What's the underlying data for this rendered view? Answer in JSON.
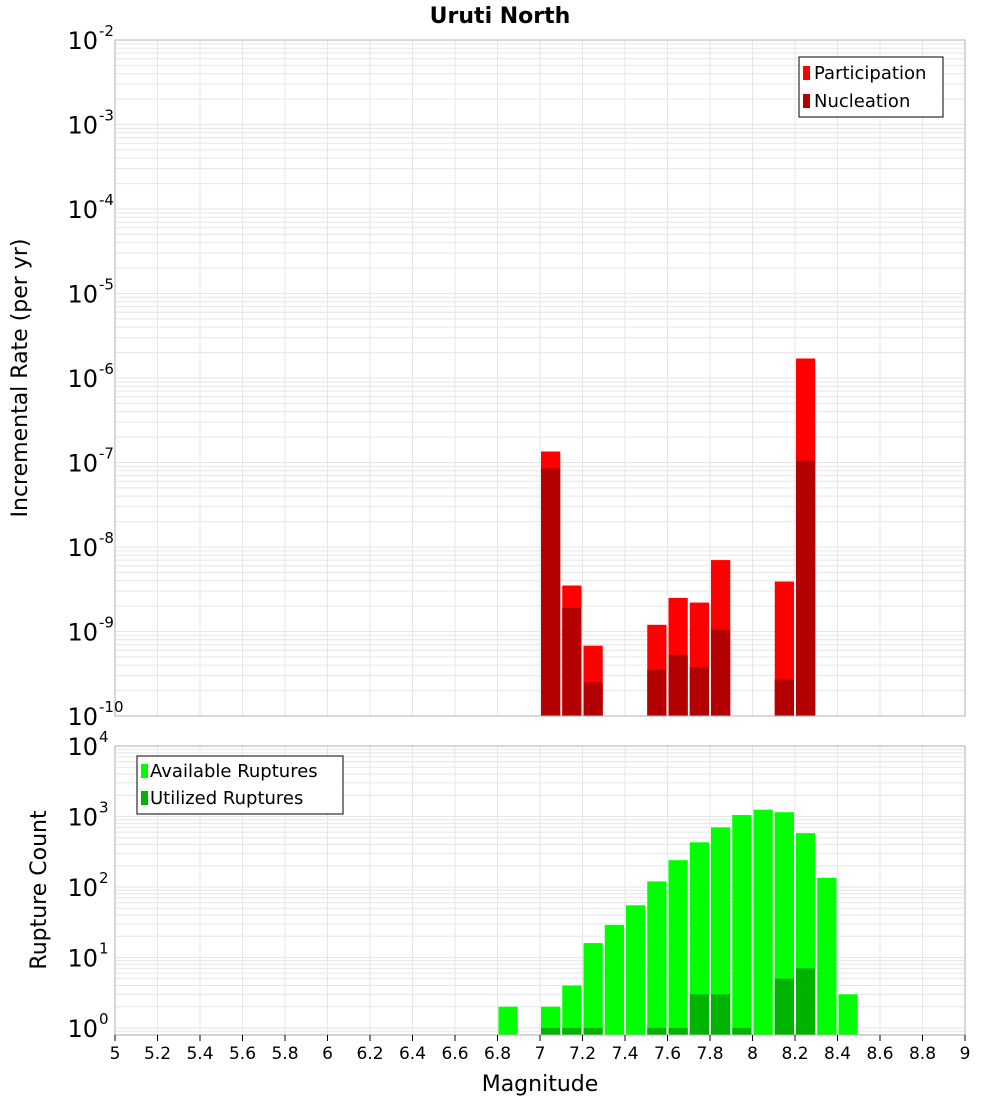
{
  "title": "Uruti North",
  "xlabel": "Magnitude",
  "colors": {
    "participation": "#ff0000",
    "nucleation": "#b30000",
    "available": "#00ff00",
    "utilized": "#00b300",
    "grid": "#e6e6e6",
    "frame": "#b0b0b0"
  },
  "chart_data": [
    {
      "type": "bar",
      "scale": "log",
      "ylabel": "Incremental Rate (per yr)",
      "xlim": [
        5,
        9
      ],
      "ylim_exp": [
        -10,
        -2
      ],
      "ytick_labels": [
        "10",
        "10",
        "10",
        "10",
        "10",
        "10",
        "10",
        "10",
        "10"
      ],
      "ytick_exps": [
        "-10",
        "-9",
        "-8",
        "-7",
        "-6",
        "-5",
        "-4",
        "-3",
        "-2"
      ],
      "legend_position": "top-right",
      "series": [
        {
          "name": "Participation",
          "x": [
            7.05,
            7.15,
            7.25,
            7.55,
            7.65,
            7.75,
            7.85,
            8.15,
            8.25
          ],
          "values": [
            1.35e-07,
            3.5e-09,
            6.8e-10,
            1.2e-09,
            2.5e-09,
            2.2e-09,
            7e-09,
            3.9e-09,
            1.7e-06
          ]
        },
        {
          "name": "Nucleation",
          "x": [
            7.05,
            7.15,
            7.25,
            7.55,
            7.65,
            7.75,
            7.85,
            8.15,
            8.25
          ],
          "values": [
            8.5e-08,
            1.9e-09,
            2.5e-10,
            3.5e-10,
            5.3e-10,
            3.8e-10,
            1.05e-09,
            2.7e-10,
            1.05e-07
          ]
        }
      ]
    },
    {
      "type": "bar",
      "scale": "log",
      "ylabel": "Rupture Count",
      "xlim": [
        5,
        9
      ],
      "ylim_exp": [
        -0.1,
        4
      ],
      "ytick_labels": [
        "10",
        "10",
        "10",
        "10",
        "10"
      ],
      "ytick_exps": [
        "0",
        "1",
        "2",
        "3",
        "4"
      ],
      "xtick_labels": [
        "5",
        "5.2",
        "5.4",
        "5.6",
        "5.8",
        "6",
        "6.2",
        "6.4",
        "6.6",
        "6.8",
        "7",
        "7.2",
        "7.4",
        "7.6",
        "7.8",
        "8",
        "8.2",
        "8.4",
        "8.6",
        "8.8",
        "9"
      ],
      "legend_position": "top-left",
      "series": [
        {
          "name": "Available Ruptures",
          "x": [
            6.85,
            7.05,
            7.15,
            7.25,
            7.35,
            7.45,
            7.55,
            7.65,
            7.75,
            7.85,
            7.95,
            8.05,
            8.15,
            8.25,
            8.35,
            8.45
          ],
          "values": [
            2,
            2,
            4,
            16,
            29,
            55,
            120,
            240,
            430,
            700,
            1050,
            1250,
            1150,
            580,
            135,
            3
          ]
        },
        {
          "name": "Utilized Ruptures",
          "x": [
            7.05,
            7.15,
            7.25,
            7.55,
            7.65,
            7.75,
            7.85,
            7.95,
            8.15,
            8.25
          ],
          "values": [
            1,
            1,
            1,
            1,
            1,
            3,
            3,
            1,
            5,
            7
          ]
        }
      ]
    }
  ]
}
